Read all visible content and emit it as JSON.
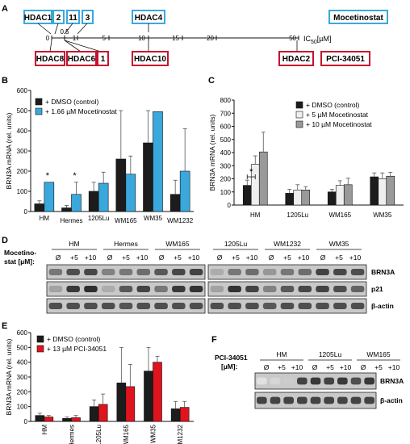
{
  "panels": {
    "A": "A",
    "B": "B",
    "C": "C",
    "D": "D",
    "E": "E",
    "F": "F"
  },
  "colors": {
    "blue": "#3aa8dc",
    "red": "#c8102e",
    "dark": "#1c1c1c",
    "light": "#efefef",
    "gray": "#9a9a9a",
    "bright_red": "#e0141e"
  },
  "panelA": {
    "top_boxes": [
      "HDAC1",
      "2",
      "11",
      "3"
    ],
    "hdac4": "HDAC4",
    "mocetinostat": "Mocetinostat",
    "bottom_boxes_left": [
      "HDAC8"
    ],
    "bottom_boxes_mid": [
      "HDAC6",
      "1"
    ],
    "hdac10": "HDAC10",
    "hdac2": "HDAC2",
    "pci": "PCI-34051",
    "ticks": [
      "0",
      "0.5",
      "1",
      "5",
      "10",
      "15",
      "20",
      "50"
    ],
    "ic50_label": "IC",
    "ic50_sub": "50",
    "ic50_unit": "[µM]"
  },
  "chart_data": [
    {
      "panel": "B",
      "type": "bar",
      "ylabel": "BRN3A mRNA (rel. units)",
      "ylim": [
        0,
        600
      ],
      "yticks": [
        "0",
        "100",
        "200",
        "300",
        "400",
        "500",
        "600"
      ],
      "categories": [
        "HM",
        "Hermes",
        "1205Lu",
        "WM165",
        "WM35",
        "WM1232"
      ],
      "series": [
        {
          "name": "+ DMSO (control)",
          "color": "#1c1c1c",
          "values": [
            38,
            18,
            100,
            260,
            340,
            85
          ],
          "errors": [
            15,
            12,
            45,
            240,
            160,
            70
          ]
        },
        {
          "name": "+ 1.66 µM Mocetinostat",
          "color": "#3aa8dc",
          "values": [
            145,
            85,
            140,
            185,
            495,
            200
          ],
          "errors": [
            0,
            60,
            55,
            90,
            0,
            210
          ]
        }
      ],
      "annotations": [
        "*",
        "*"
      ]
    },
    {
      "panel": "C",
      "type": "bar",
      "ylabel": "BRN3A mRNA (rel. units)",
      "ylim": [
        0,
        800
      ],
      "yticks": [
        "0",
        "100",
        "200",
        "300",
        "400",
        "500",
        "600",
        "700",
        "800"
      ],
      "categories": [
        "HM",
        "1205Lu",
        "WM165",
        "WM35"
      ],
      "series": [
        {
          "name": "+ DMSO (control)",
          "color": "#1c1c1c",
          "values": [
            150,
            90,
            100,
            215
          ],
          "errors": [
            40,
            30,
            20,
            30
          ]
        },
        {
          "name": "+ 5 µM Mocetinostat",
          "color": "#efefef",
          "values": [
            310,
            115,
            150,
            200
          ],
          "errors": [
            65,
            40,
            35,
            45
          ]
        },
        {
          "name": "+ 10 µM Mocetinostat",
          "color": "#9a9a9a",
          "values": [
            405,
            115,
            155,
            220
          ],
          "errors": [
            150,
            25,
            50,
            30
          ]
        }
      ],
      "annotations": [
        "*"
      ]
    },
    {
      "panel": "E",
      "type": "bar",
      "ylabel": "BRN3A mRNA (rel. units)",
      "ylim": [
        0,
        600
      ],
      "yticks": [
        "0",
        "100",
        "200",
        "300",
        "400",
        "500",
        "600"
      ],
      "categories": [
        "HM",
        "Hermes",
        "1205Lu",
        "WM165",
        "WM35",
        "WM1232"
      ],
      "series": [
        {
          "name": "+ DMSO (control)",
          "color": "#1c1c1c",
          "values": [
            40,
            20,
            100,
            260,
            340,
            85
          ],
          "errors": [
            15,
            10,
            45,
            240,
            160,
            50
          ]
        },
        {
          "name": "+ 13 µM PCI-34051",
          "color": "#e0141e",
          "values": [
            30,
            25,
            115,
            235,
            400,
            95
          ],
          "errors": [
            10,
            15,
            70,
            150,
            40,
            40
          ]
        }
      ]
    }
  ],
  "panelD": {
    "row_label_1": "Mocetino-",
    "row_label_2": "stat [µM]:",
    "groups_left": [
      "HM",
      "Hermes",
      "WM165"
    ],
    "groups_right": [
      "1205Lu",
      "WM1232",
      "WM35"
    ],
    "lane_labels": [
      "Ø",
      "+5",
      "+10"
    ],
    "bands": [
      "BRN3A",
      "p21",
      "β-actin"
    ]
  },
  "panelF": {
    "row_label_1": "PCI-34051",
    "row_label_2": "[µM]:",
    "groups": [
      "HM",
      "1205Lu",
      "WM165"
    ],
    "lane_labels": [
      "Ø",
      "+5",
      "+10"
    ],
    "bands": [
      "BRN3A",
      "β-actin"
    ]
  }
}
